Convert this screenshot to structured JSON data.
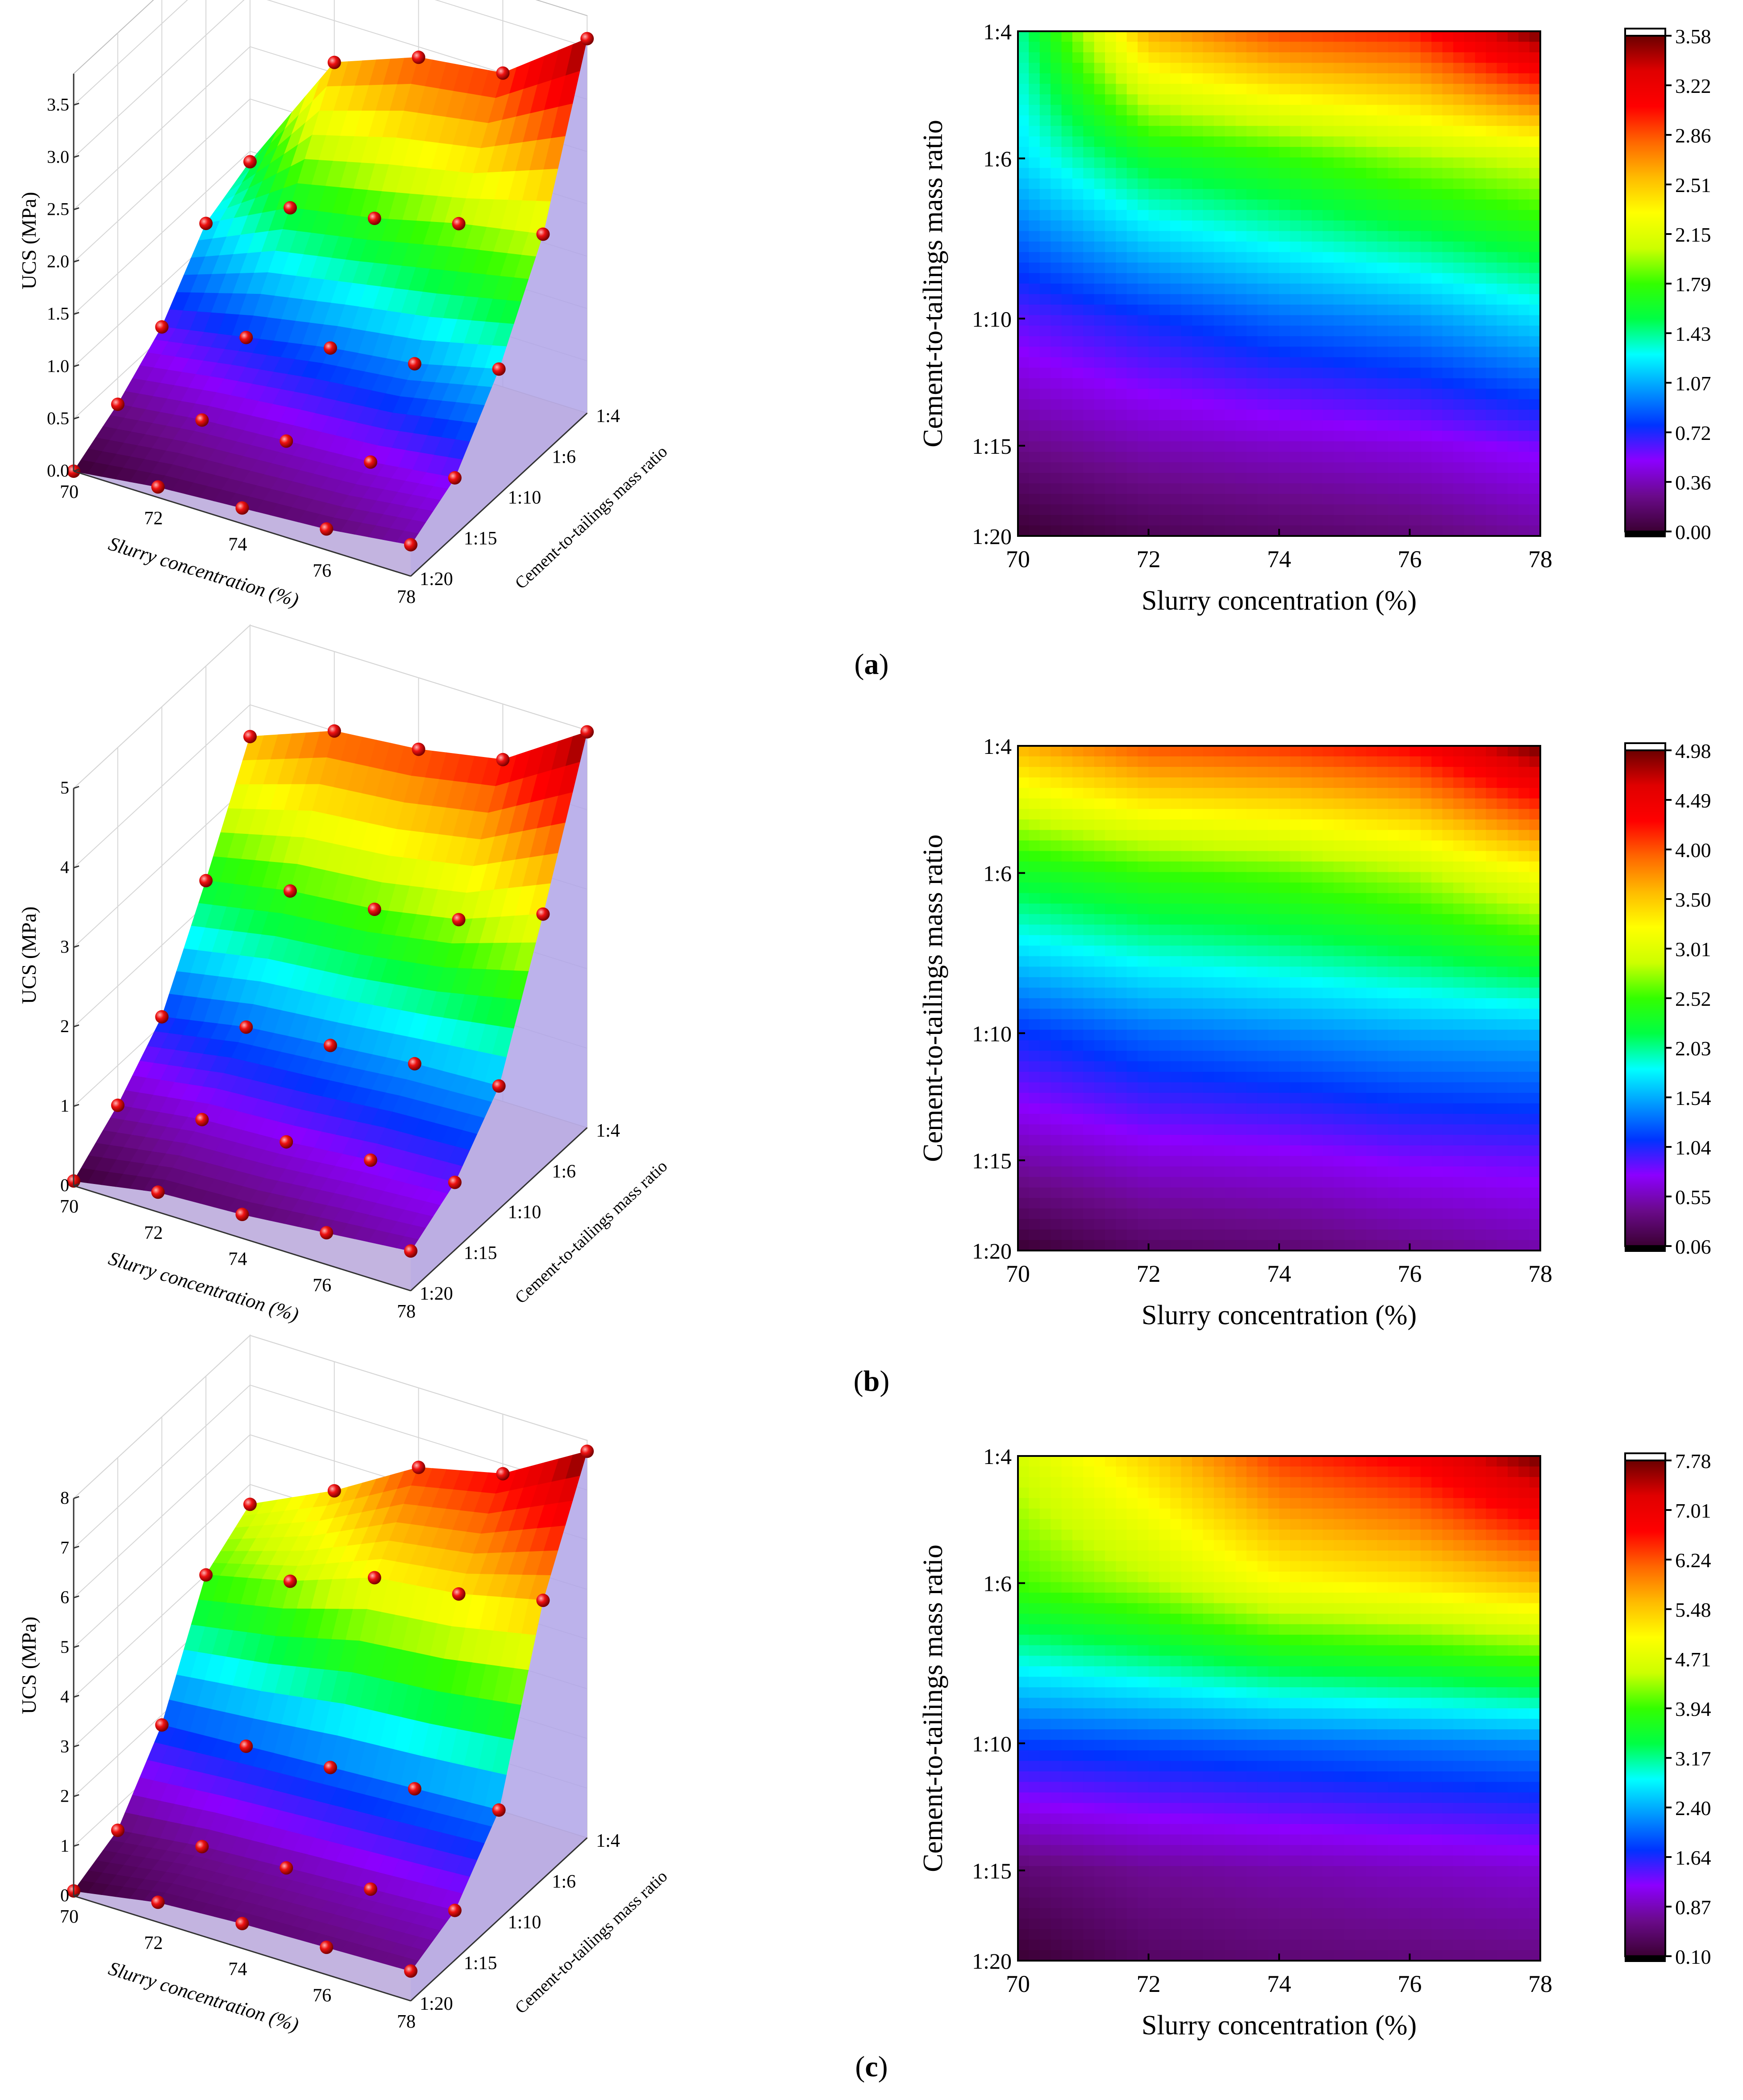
{
  "figure": {
    "panel_labels": [
      "a",
      "b",
      "c"
    ]
  },
  "colormap": [
    "#3b0033",
    "#6a0a8a",
    "#8c00ff",
    "#0033ff",
    "#0099ff",
    "#00ffff",
    "#00ff44",
    "#33ff00",
    "#ccff00",
    "#ffff00",
    "#ffbb00",
    "#ff6600",
    "#ff0000",
    "#e00000",
    "#6b0000"
  ],
  "chart_data": [
    {
      "panel": "a",
      "type": "heatmap",
      "title": "",
      "x": [
        70,
        72,
        74,
        76,
        78
      ],
      "y_labels": [
        "1:20",
        "1:15",
        "1:10",
        "1:6",
        "1:4"
      ],
      "y_positions": [
        20,
        15,
        10,
        6,
        4
      ],
      "values": [
        [
          0.0,
          0.1,
          0.15,
          0.2,
          0.3
        ],
        [
          0.25,
          0.35,
          0.4,
          0.45,
          0.55
        ],
        [
          0.6,
          0.75,
          0.9,
          1.0,
          1.2
        ],
        [
          1.2,
          1.6,
          1.75,
          1.95,
          2.1
        ],
        [
          1.4,
          2.6,
          2.9,
          3.0,
          3.58
        ]
      ],
      "zlim": [
        0.0,
        3.58
      ],
      "colorbar_ticks": [
        "0.00",
        "0.36",
        "0.72",
        "1.07",
        "1.43",
        "1.79",
        "2.15",
        "2.51",
        "2.86",
        "3.22",
        "3.58"
      ],
      "xlabel": "Slurry concentration (%)",
      "ylabel": "Cement-to-tailings mass ratio",
      "zlabel": "UCS (MPa)",
      "z_ticks": [
        "0.0",
        "0.5",
        "1.0",
        "1.5",
        "2.0",
        "2.5",
        "3.0",
        "3.5"
      ],
      "z_tick_values": [
        0,
        0.5,
        1.0,
        1.5,
        2.0,
        2.5,
        3.0,
        3.5
      ],
      "zmax3d": 3.8
    },
    {
      "panel": "b",
      "type": "heatmap",
      "title": "",
      "x": [
        70,
        72,
        74,
        76,
        78
      ],
      "y_labels": [
        "1:20",
        "1:15",
        "1:10",
        "1:6",
        "1:4"
      ],
      "y_positions": [
        20,
        15,
        10,
        6,
        4
      ],
      "values": [
        [
          0.06,
          0.25,
          0.3,
          0.4,
          0.5
        ],
        [
          0.5,
          0.65,
          0.7,
          0.8,
          0.85
        ],
        [
          1.1,
          1.3,
          1.4,
          1.5,
          1.55
        ],
        [
          2.3,
          2.5,
          2.6,
          2.8,
          3.2
        ],
        [
          3.6,
          4.0,
          4.1,
          4.3,
          4.98
        ]
      ],
      "zlim": [
        0.06,
        4.98
      ],
      "colorbar_ticks": [
        "0.06",
        "0.55",
        "1.04",
        "1.54",
        "2.03",
        "2.52",
        "3.01",
        "3.50",
        "4.00",
        "4.49",
        "4.98"
      ],
      "xlabel": "Slurry concentration (%)",
      "ylabel": "Cement-to-tailings mass ratio",
      "zlabel": "UCS (MPa)",
      "z_ticks": [
        "0",
        "1",
        "2",
        "3",
        "4",
        "5"
      ],
      "z_tick_values": [
        0,
        1,
        2,
        3,
        4,
        5
      ],
      "zmax3d": 5.0
    },
    {
      "panel": "c",
      "type": "heatmap",
      "title": "",
      "x": [
        70,
        72,
        74,
        76,
        78
      ],
      "y_labels": [
        "1:20",
        "1:15",
        "1:10",
        "1:6",
        "1:4"
      ],
      "y_positions": [
        20,
        15,
        10,
        6,
        4
      ],
      "values": [
        [
          0.1,
          0.4,
          0.5,
          0.55,
          0.6
        ],
        [
          0.5,
          0.7,
          0.8,
          0.9,
          1.0
        ],
        [
          1.8,
          1.9,
          2.0,
          2.1,
          2.2
        ],
        [
          4.0,
          4.4,
          5.0,
          5.2,
          5.6
        ],
        [
          4.6,
          5.4,
          6.4,
          6.8,
          7.78
        ]
      ],
      "zlim": [
        0.1,
        7.78
      ],
      "colorbar_ticks": [
        "0.10",
        "0.87",
        "1.64",
        "2.40",
        "3.17",
        "3.94",
        "4.71",
        "5.48",
        "6.24",
        "7.01",
        "7.78"
      ],
      "xlabel": "Slurry concentration (%)",
      "ylabel": "Cement-to-tailings mass ratio",
      "zlabel": "UCS (MPa)",
      "z_ticks": [
        "0",
        "1",
        "2",
        "3",
        "4",
        "5",
        "6",
        "7",
        "8"
      ],
      "z_tick_values": [
        0,
        1,
        2,
        3,
        4,
        5,
        6,
        7,
        8
      ],
      "zmax3d": 8.0
    }
  ]
}
